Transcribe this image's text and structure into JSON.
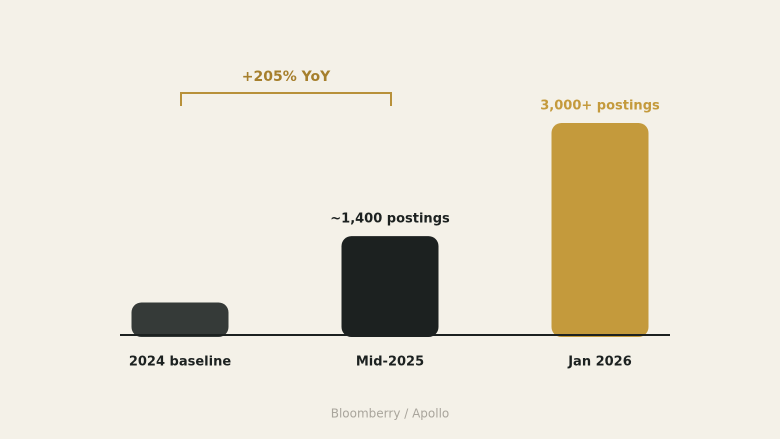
{
  "chart_data": {
    "type": "bar",
    "categories": [
      "2024 baseline",
      "Mid-2025",
      "Jan 2026"
    ],
    "values": [
      460,
      1400,
      3000
    ],
    "value_labels": [
      null,
      "~1,400 postings",
      "3,000+ postings"
    ],
    "colors": [
      "#353a38",
      "#1c2120",
      "#c49a3c"
    ],
    "annotation": "+205% YoY",
    "source": "Bloomberry / Apollo"
  }
}
